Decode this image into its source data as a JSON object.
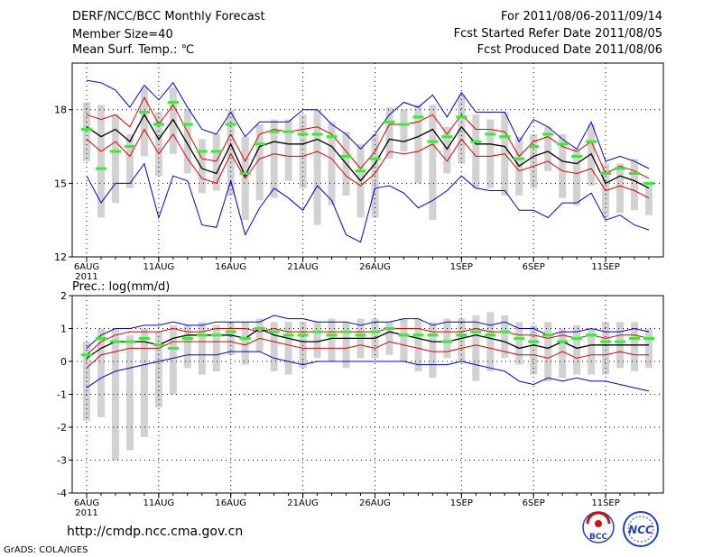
{
  "header": {
    "title": "DERF/NCC/BCC Monthly Forecast",
    "member_size": "Member Size=40",
    "variable": "Mean Surf. Temp.: ℃",
    "period": "For 2011/08/06-2011/09/14",
    "fcst_started": "Fcst Started Refer Date 2011/08/05",
    "fcst_produced": "Fcst Produced Date 2011/08/06"
  },
  "footer": {
    "url": "http://cmdp.ncc.cma.gov.cn",
    "grads": "GrADS: COLA/IGES",
    "logo_left_text": "BCC",
    "logo_right_text": "NCC"
  },
  "colors": {
    "box": "#d2d2d2",
    "median": "#33ee33",
    "ensemble_mean": "#000000",
    "inner_band": "#dd0000",
    "outer_band": "#0000cc",
    "grid": "#000000"
  },
  "chart_data": [
    {
      "type": "line",
      "title": "Mean Surf. Temp.: ℃",
      "x_start_date": "2011-08-06",
      "n_days": 40,
      "xtick_labels": [
        "6AUG",
        "11AUG",
        "16AUG",
        "21AUG",
        "26AUG",
        "1SEP",
        "6SEP",
        "11SEP"
      ],
      "xtick_day_index": [
        0,
        5,
        10,
        15,
        20,
        26,
        31,
        36
      ],
      "year_label": "2011",
      "ylim": [
        12,
        19.9
      ],
      "yticks": [
        12,
        15,
        18
      ],
      "series": [
        {
          "name": "upper",
          "values": [
            19.2,
            19.1,
            18.8,
            18.1,
            19.0,
            18.4,
            19.1,
            18.1,
            17.2,
            17.0,
            17.9,
            16.9,
            17.5,
            17.5,
            17.5,
            18.0,
            18.0,
            17.4,
            17.0,
            16.4,
            17.0,
            17.8,
            18.3,
            18.1,
            18.6,
            17.7,
            18.7,
            17.9,
            17.9,
            17.9,
            16.7,
            17.6,
            17.3,
            16.8,
            16.4,
            17.5,
            15.9,
            16.1,
            15.9,
            15.6
          ]
        },
        {
          "name": "upper_inner",
          "values": [
            17.8,
            17.6,
            17.8,
            17.3,
            18.5,
            17.4,
            18.2,
            17.1,
            16.0,
            15.9,
            17.0,
            15.9,
            17.0,
            17.2,
            17.1,
            17.2,
            17.3,
            17.0,
            16.3,
            15.6,
            16.3,
            17.4,
            17.4,
            17.5,
            17.8,
            17.0,
            17.8,
            17.2,
            17.2,
            17.1,
            16.1,
            16.7,
            16.9,
            16.5,
            16.3,
            16.7,
            15.4,
            15.7,
            15.5,
            15.2
          ]
        },
        {
          "name": "ensemble_mean",
          "values": [
            17.3,
            16.9,
            17.2,
            16.7,
            17.8,
            16.8,
            17.6,
            16.6,
            15.6,
            15.4,
            16.6,
            15.3,
            16.5,
            16.7,
            16.6,
            16.6,
            16.8,
            16.5,
            15.8,
            15.1,
            15.8,
            16.8,
            16.7,
            16.9,
            17.2,
            16.4,
            17.3,
            16.6,
            16.6,
            16.5,
            15.7,
            16.1,
            16.3,
            15.9,
            15.8,
            16.2,
            15.0,
            15.3,
            15.1,
            14.8
          ]
        },
        {
          "name": "lower_inner",
          "values": [
            16.8,
            16.3,
            16.7,
            16.1,
            17.2,
            16.2,
            17.0,
            16.0,
            15.2,
            15.0,
            16.2,
            15.2,
            16.0,
            16.2,
            16.1,
            16.1,
            16.3,
            16.0,
            15.3,
            14.9,
            15.4,
            16.3,
            16.2,
            16.3,
            16.6,
            15.9,
            16.8,
            16.1,
            16.1,
            16.2,
            15.5,
            15.7,
            15.9,
            15.5,
            15.4,
            15.6,
            14.7,
            14.9,
            14.7,
            14.4
          ]
        },
        {
          "name": "lower",
          "values": [
            15.3,
            14.2,
            15.0,
            15.0,
            15.8,
            13.6,
            15.3,
            15.1,
            13.3,
            13.2,
            15.1,
            12.9,
            14.0,
            14.8,
            14.4,
            13.9,
            14.9,
            14.3,
            12.9,
            12.6,
            14.8,
            14.9,
            14.6,
            14.0,
            14.3,
            14.7,
            15.3,
            14.8,
            14.7,
            14.7,
            13.9,
            13.9,
            13.6,
            14.2,
            14.2,
            14.6,
            13.5,
            13.7,
            13.3,
            13.1
          ]
        },
        {
          "name": "median",
          "values": [
            17.2,
            15.6,
            16.3,
            16.5,
            17.9,
            17.4,
            18.3,
            17.4,
            16.3,
            16.3,
            17.4,
            15.4,
            16.6,
            17.1,
            17.1,
            17.0,
            17.0,
            16.9,
            16.1,
            15.5,
            16.0,
            17.5,
            17.4,
            17.7,
            16.7,
            16.9,
            17.7,
            16.7,
            17.0,
            16.9,
            16.0,
            16.5,
            17.0,
            16.6,
            16.1,
            16.7,
            15.4,
            15.6,
            15.4,
            15.0
          ]
        },
        {
          "name": "box_max",
          "values": [
            18.3,
            18.2,
            17.8,
            17.0,
            18.9,
            17.9,
            18.9,
            18.0,
            16.8,
            17.0,
            18.0,
            16.9,
            17.4,
            17.6,
            17.6,
            17.8,
            18.0,
            17.5,
            17.1,
            16.6,
            17.0,
            18.1,
            18.0,
            18.2,
            18.2,
            17.3,
            18.6,
            17.8,
            17.6,
            17.9,
            16.9,
            17.0,
            17.3,
            17.0,
            16.4,
            17.4,
            15.8,
            15.8,
            16.0,
            15.0
          ]
        },
        {
          "name": "box_min",
          "values": [
            15.9,
            13.6,
            14.2,
            14.8,
            16.1,
            15.3,
            16.2,
            15.4,
            14.6,
            14.7,
            14.5,
            13.5,
            14.3,
            14.4,
            15.1,
            14.8,
            13.3,
            14.1,
            14.5,
            13.6,
            13.6,
            16.0,
            16.3,
            15.0,
            13.5,
            15.4,
            15.8,
            14.8,
            14.8,
            14.5,
            14.5,
            14.8,
            15.5,
            14.4,
            14.1,
            14.9,
            13.6,
            13.8,
            13.9,
            13.7
          ]
        }
      ]
    },
    {
      "type": "line",
      "title": "Prec.: log(mm/d)",
      "x_start_date": "2011-08-06",
      "n_days": 40,
      "xtick_labels": [
        "6AUG",
        "11AUG",
        "16AUG",
        "21AUG",
        "26AUG",
        "1SEP",
        "6SEP",
        "11SEP"
      ],
      "xtick_day_index": [
        0,
        5,
        10,
        15,
        20,
        26,
        31,
        36
      ],
      "year_label": "2011",
      "ylim": [
        -4,
        2
      ],
      "yticks": [
        -4,
        -3,
        -2,
        -1,
        0,
        1,
        2
      ],
      "series": [
        {
          "name": "upper",
          "values": [
            0.4,
            0.8,
            1.0,
            1.0,
            1.1,
            1.1,
            1.2,
            1.1,
            1.1,
            1.2,
            1.2,
            1.2,
            1.2,
            1.4,
            1.3,
            1.3,
            1.2,
            1.2,
            1.2,
            1.1,
            1.2,
            1.2,
            1.3,
            1.3,
            1.1,
            1.2,
            1.2,
            1.2,
            1.1,
            1.2,
            1.0,
            1.0,
            0.8,
            0.9,
            0.9,
            1.0,
            0.9,
            0.9,
            1.0,
            0.9
          ]
        },
        {
          "name": "upper_inner",
          "values": [
            0.2,
            0.6,
            0.8,
            0.9,
            0.9,
            0.9,
            1.0,
            0.9,
            0.9,
            1.0,
            1.0,
            1.0,
            0.9,
            1.0,
            0.9,
            0.9,
            0.9,
            0.9,
            0.9,
            0.9,
            0.9,
            1.0,
            1.0,
            1.0,
            0.9,
            0.9,
            0.9,
            1.0,
            0.9,
            0.9,
            0.8,
            0.8,
            0.7,
            0.8,
            0.7,
            0.8,
            0.7,
            0.8,
            0.8,
            0.7
          ]
        },
        {
          "name": "ensemble_mean",
          "values": [
            0.1,
            0.4,
            0.6,
            0.6,
            0.6,
            0.5,
            0.7,
            0.8,
            0.8,
            0.8,
            0.8,
            0.7,
            1.0,
            0.8,
            0.7,
            0.6,
            0.6,
            0.7,
            0.7,
            0.7,
            0.7,
            0.9,
            0.8,
            0.7,
            0.6,
            0.6,
            0.7,
            0.8,
            0.7,
            0.6,
            0.4,
            0.5,
            0.4,
            0.6,
            0.4,
            0.5,
            0.5,
            0.5,
            0.5,
            0.5
          ]
        },
        {
          "name": "lower_inner",
          "values": [
            -0.2,
            0.2,
            0.3,
            0.4,
            0.4,
            0.4,
            0.6,
            0.6,
            0.6,
            0.6,
            0.6,
            0.5,
            0.7,
            0.6,
            0.5,
            0.4,
            0.4,
            0.4,
            0.4,
            0.5,
            0.4,
            0.6,
            0.5,
            0.4,
            0.3,
            0.3,
            0.4,
            0.5,
            0.4,
            0.3,
            0.2,
            0.2,
            0.1,
            0.3,
            0.1,
            0.2,
            0.2,
            0.3,
            0.2,
            0.2
          ]
        },
        {
          "name": "lower",
          "values": [
            -0.8,
            -0.5,
            -0.3,
            -0.2,
            -0.1,
            0.0,
            0.1,
            0.2,
            0.2,
            0.2,
            0.3,
            0.3,
            0.3,
            0.1,
            0.0,
            -0.1,
            0.0,
            0.0,
            0.0,
            0.0,
            0.0,
            0.0,
            0.0,
            -0.1,
            -0.1,
            -0.1,
            0.0,
            -0.1,
            -0.2,
            -0.3,
            -0.6,
            -0.7,
            -0.5,
            -0.6,
            -0.5,
            -0.6,
            -0.6,
            -0.7,
            -0.8,
            -0.9
          ]
        },
        {
          "name": "median",
          "values": [
            0.2,
            0.7,
            0.6,
            0.6,
            0.7,
            0.5,
            0.4,
            0.7,
            0.8,
            0.8,
            0.9,
            0.7,
            1.0,
            0.9,
            0.8,
            0.8,
            0.9,
            0.8,
            0.9,
            0.8,
            0.9,
            1.0,
            0.8,
            0.8,
            0.8,
            0.6,
            0.8,
            0.9,
            0.8,
            0.9,
            0.7,
            0.6,
            0.8,
            0.6,
            0.7,
            0.8,
            0.6,
            0.6,
            0.7,
            0.7
          ]
        },
        {
          "name": "box_max",
          "values": [
            0.6,
            1.0,
            1.0,
            0.8,
            1.0,
            0.9,
            1.1,
            1.1,
            1.2,
            1.1,
            1.2,
            1.2,
            1.3,
            1.2,
            1.2,
            1.2,
            1.2,
            1.3,
            1.2,
            1.3,
            1.3,
            1.2,
            1.3,
            1.3,
            1.2,
            1.3,
            1.3,
            1.4,
            1.5,
            1.4,
            1.2,
            1.1,
            1.2,
            1.0,
            1.1,
            1.0,
            1.2,
            1.2,
            1.2,
            1.0
          ]
        },
        {
          "name": "box_min",
          "values": [
            -1.8,
            -1.7,
            -3.0,
            -2.7,
            -2.3,
            -1.4,
            -1.0,
            -0.2,
            -0.4,
            -0.3,
            0.2,
            -0.1,
            0.3,
            -0.3,
            -0.4,
            -0.2,
            0.1,
            0.0,
            -0.2,
            0.1,
            0.1,
            0.2,
            0.0,
            -0.3,
            -0.5,
            0.1,
            0.0,
            -0.6,
            -0.3,
            0.1,
            -0.1,
            -0.4,
            -0.6,
            -0.5,
            -0.4,
            -0.4,
            -0.4,
            -0.2,
            -0.3,
            -0.2
          ]
        }
      ]
    }
  ]
}
